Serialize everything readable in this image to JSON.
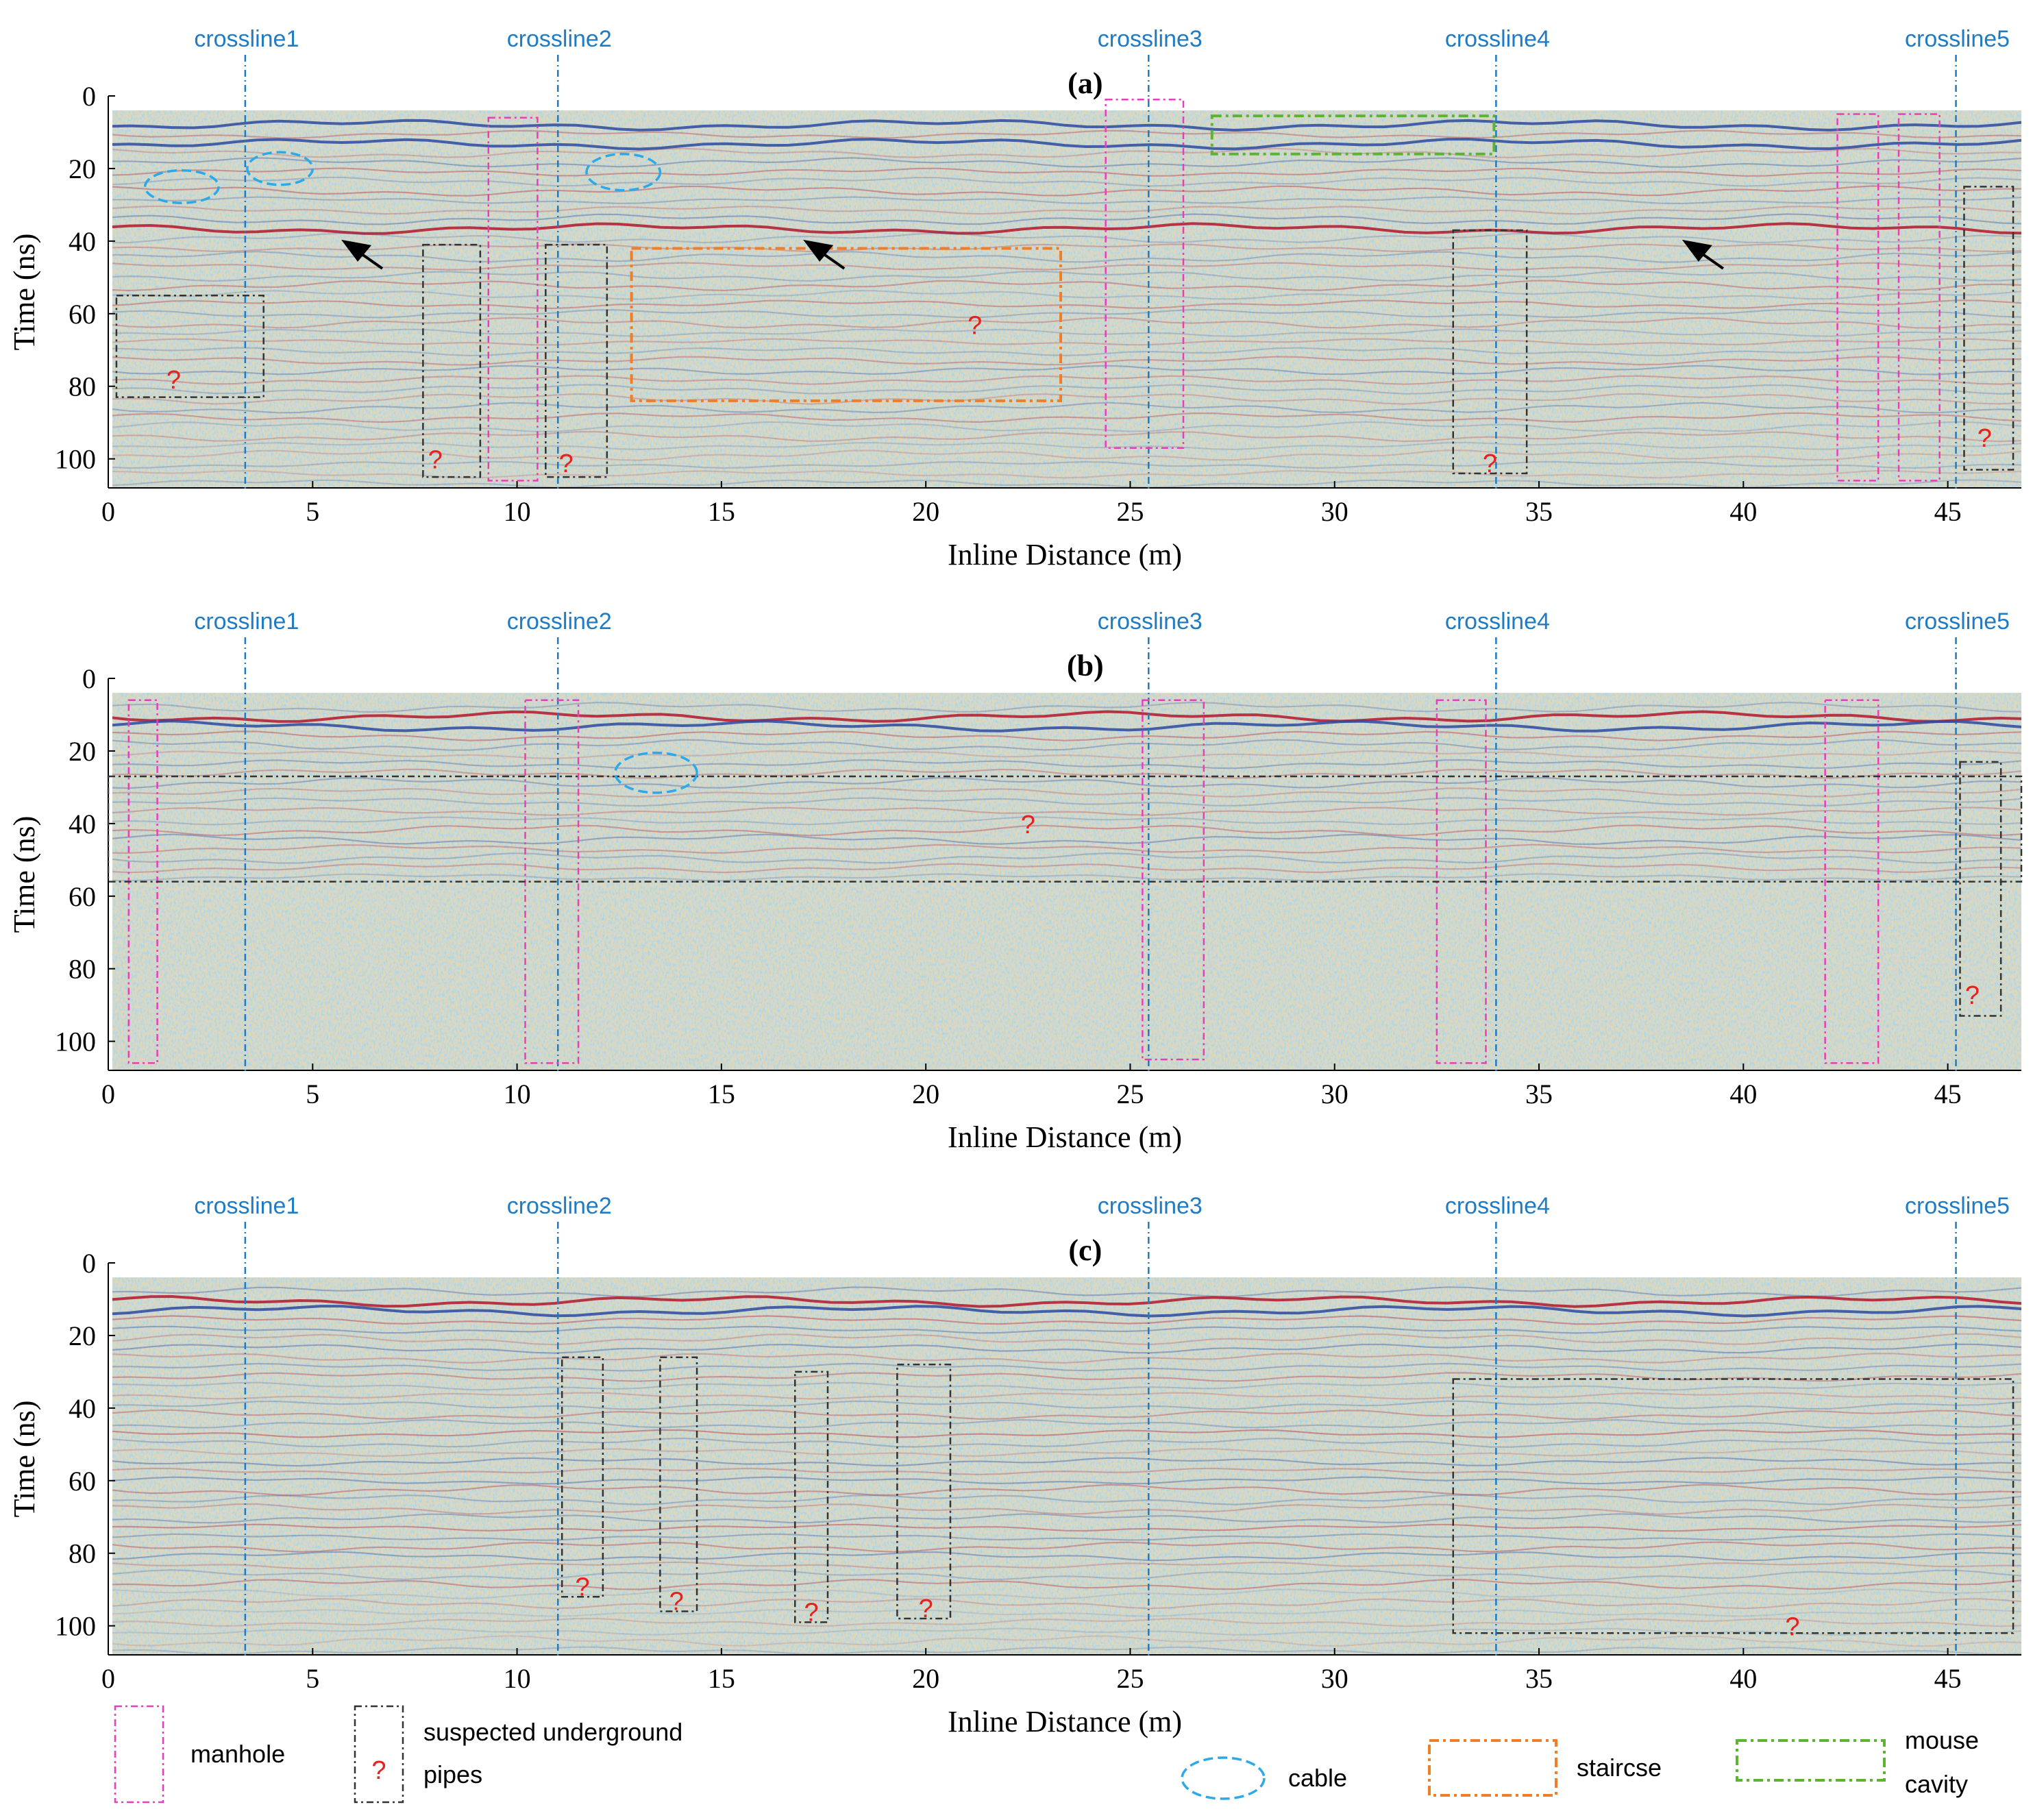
{
  "chart_data": {
    "type": "heatmap",
    "description_units": {
      "x": "m",
      "y": "ns"
    },
    "xlabel": "Inline Distance (m)",
    "ylabel": "Time (ns)",
    "xlim": [
      0,
      46.8
    ],
    "ylim": [
      0,
      108
    ],
    "xticks": [
      0,
      5,
      10,
      15,
      20,
      25,
      30,
      35,
      40,
      45
    ],
    "yticks": [
      0,
      20,
      40,
      60,
      80,
      100
    ],
    "crosslines": [
      {
        "label": "crossline1",
        "x": 3.35
      },
      {
        "label": "crossline2",
        "x": 11.0
      },
      {
        "label": "crossline3",
        "x": 25.45
      },
      {
        "label": "crossline4",
        "x": 33.95
      },
      {
        "label": "crossline5",
        "x": 45.2
      }
    ],
    "colors": {
      "manhole": "#e83fb8",
      "pipe": "#333333",
      "cable": "#2da9e8",
      "staircase": "#f07d28",
      "mouse_cavity": "#5cb530",
      "crossline": "#1f7bc4",
      "question": "#e8201e",
      "positive": "#b2182b",
      "negative": "#2c4aa0"
    },
    "legend": [
      {
        "key": "manhole",
        "label": "manhole",
        "shape": "rect"
      },
      {
        "key": "pipe",
        "label": "suspected underground pipes",
        "line1": "suspected underground",
        "line2": "pipes",
        "shape": "rect-question"
      },
      {
        "key": "cable",
        "label": "cable",
        "shape": "ellipse"
      },
      {
        "key": "staircase",
        "label": "staircse",
        "shape": "rect"
      },
      {
        "key": "mouse_cavity",
        "label": "mouse cavity",
        "line1": "mouse",
        "line2": "cavity",
        "shape": "rect"
      }
    ],
    "panels": [
      {
        "label": "(a)",
        "strong_reflectors": [
          9,
          12,
          36
        ],
        "reflector_depth_limit": 108,
        "manholes": [
          [
            9.3,
            10.5,
            6,
            106
          ],
          [
            24.4,
            26.3,
            1,
            97
          ],
          [
            42.3,
            43.3,
            5,
            106
          ],
          [
            43.8,
            44.8,
            5,
            106
          ]
        ],
        "pipes": [
          [
            0.2,
            3.8,
            55,
            83,
            1.6,
            78
          ],
          [
            7.7,
            9.1,
            41,
            105,
            8.0,
            100
          ],
          [
            10.7,
            12.2,
            41,
            105,
            11.2,
            101
          ],
          [
            32.9,
            34.7,
            37,
            104,
            33.8,
            101
          ],
          [
            45.4,
            46.6,
            25,
            103,
            45.9,
            94
          ]
        ],
        "cables": [
          [
            1.8,
            25,
            0.9,
            4.5
          ],
          [
            4.2,
            20,
            0.8,
            4.5
          ],
          [
            12.6,
            21,
            0.9,
            5
          ]
        ],
        "staircase": [
          [
            12.8,
            23.3,
            42,
            84
          ]
        ],
        "staircase_q": [
          21.2,
          63
        ],
        "mouse_cavity": [
          [
            27.0,
            33.9,
            5.5,
            16
          ]
        ],
        "arrows": [
          [
            5.7,
            40
          ],
          [
            17.0,
            40
          ],
          [
            38.5,
            40
          ]
        ]
      },
      {
        "label": "(b)",
        "strong_reflectors": [
          11,
          13
        ],
        "reflector_depth_limit": 56,
        "manholes": [
          [
            0.5,
            1.2,
            6,
            106
          ],
          [
            10.2,
            11.5,
            6,
            106
          ],
          [
            25.3,
            26.8,
            6,
            105
          ],
          [
            32.5,
            33.7,
            6,
            106
          ],
          [
            42.0,
            43.3,
            6,
            106
          ]
        ],
        "pipes": [
          [
            45.3,
            46.3,
            23,
            93,
            45.6,
            87
          ]
        ],
        "wide_pipe": [
          [
            0,
            46.8,
            27,
            56,
            22.5,
            40
          ]
        ],
        "cables": [
          [
            13.4,
            26,
            1.0,
            5.5
          ]
        ],
        "staircase": [],
        "mouse_cavity": [],
        "arrows": []
      },
      {
        "label": "(c)",
        "strong_reflectors": [
          11,
          13
        ],
        "reflector_depth_limit": 108,
        "manholes": [],
        "pipes": [
          [
            11.1,
            12.1,
            26,
            92,
            11.6,
            89
          ],
          [
            13.5,
            14.4,
            26,
            96,
            13.9,
            93
          ],
          [
            16.8,
            17.6,
            30,
            99,
            17.2,
            96
          ],
          [
            19.3,
            20.6,
            28,
            98,
            20.0,
            95
          ],
          [
            32.9,
            46.6,
            32,
            102,
            41.2,
            100
          ]
        ],
        "cables": [],
        "staircase": [],
        "mouse_cavity": []
      }
    ]
  },
  "question_mark": "?"
}
